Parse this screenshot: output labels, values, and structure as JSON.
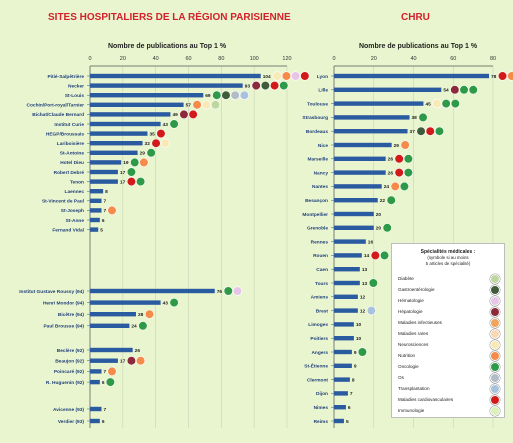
{
  "chart_data": [
    {
      "type": "bar",
      "title": "SITES HOSPITALIERS DE LA RÉGION PARISIENNE",
      "xlabel": "Nombre de publications au Top 1 %",
      "xlim": [
        0,
        120
      ],
      "ticks": [
        0,
        20,
        40,
        60,
        80,
        100,
        120
      ],
      "grid": true,
      "bar_color": "#2a5aa0",
      "rows": [
        {
          "label": "Pitié-Salpêtrière",
          "value": 104,
          "specialties": [
            "neurosciences",
            "nutrition",
            "hematologie",
            "cardiovasculaires"
          ]
        },
        {
          "label": "Necker",
          "value": 93,
          "specialties": [
            "hepatologie",
            "gastroenterologie",
            "cardiovasculaires",
            "oncologie"
          ]
        },
        {
          "label": "St-Louis",
          "value": 69,
          "specialties": [
            "oncologie",
            "gastroenterologie",
            "os",
            "transplantation"
          ]
        },
        {
          "label": "Cochin/Port-royal/Tarnier",
          "value": 57,
          "specialties": [
            "nutrition",
            "neurosciences",
            "diabete"
          ]
        },
        {
          "label": "Bichat/Claude Bernard",
          "value": 49,
          "specialties": [
            "hepatologie",
            "cardiovasculaires"
          ]
        },
        {
          "label": "Institut Curie",
          "value": 43,
          "specialties": [
            "oncologie"
          ]
        },
        {
          "label": "HEGP/Broussais",
          "value": 35,
          "specialties": [
            "cardiovasculaires"
          ]
        },
        {
          "label": "Lariboisière",
          "value": 32,
          "specialties": [
            "cardiovasculaires",
            "neurosciences"
          ]
        },
        {
          "label": "St-Antoine",
          "value": 29,
          "specialties": [
            "oncologie"
          ]
        },
        {
          "label": "Hotel Dieu",
          "value": 19,
          "specialties": [
            "oncologie",
            "nutrition"
          ]
        },
        {
          "label": "Robert Debré",
          "value": 17,
          "specialties": [
            "oncologie"
          ]
        },
        {
          "label": "Tenon",
          "value": 17,
          "specialties": [
            "cardiovasculaires",
            "oncologie"
          ]
        },
        {
          "label": "Laennec",
          "value": 8,
          "specialties": []
        },
        {
          "label": "St-Vincent de Paul",
          "value": 7,
          "specialties": []
        },
        {
          "label": "St-Joseph",
          "value": 7,
          "specialties": [
            "nutrition"
          ]
        },
        {
          "label": "St-Anne",
          "value": 6,
          "specialties": []
        },
        {
          "label": "Fernand Vidal",
          "value": 5,
          "specialties": []
        },
        {
          "label": "Institut Gustave Roussy (94)",
          "value": 76,
          "specialties": [
            "oncologie",
            "hematologie"
          ]
        },
        {
          "label": "Henri Mondor (94)",
          "value": 43,
          "specialties": [
            "oncologie"
          ]
        },
        {
          "label": "Bicêtre (94)",
          "value": 28,
          "specialties": [
            "nutrition"
          ]
        },
        {
          "label": "Paul Brousse (94)",
          "value": 24,
          "specialties": [
            "oncologie"
          ]
        },
        {
          "label": "Beclère (92)",
          "value": 26,
          "specialties": []
        },
        {
          "label": "Beaujon (92)",
          "value": 17,
          "specialties": [
            "hepatologie",
            "nutrition"
          ]
        },
        {
          "label": "Poincaré (92)",
          "value": 7,
          "specialties": [
            "nutrition"
          ]
        },
        {
          "label": "R. Huguenin (92)",
          "value": 6,
          "specialties": [
            "oncologie"
          ]
        },
        {
          "label": "Avicenne (93)",
          "value": 7,
          "specialties": []
        },
        {
          "label": "Verdier (93)",
          "value": 6,
          "specialties": []
        }
      ]
    },
    {
      "type": "bar",
      "title": "CHRU",
      "xlabel": "Nombre de publications au Top 1 %",
      "xlim": [
        0,
        80
      ],
      "ticks": [
        0,
        20,
        40,
        60,
        80
      ],
      "grid": true,
      "bar_color": "#2a5aa0",
      "rows": [
        {
          "label": "Lyon",
          "value": 78,
          "specialties": [
            "cardiovasculaires",
            "nutrition",
            "neurosciences",
            "immunologie"
          ]
        },
        {
          "label": "Lille",
          "value": 54,
          "specialties": [
            "hepatologie",
            "oncologie",
            "oncologie"
          ]
        },
        {
          "label": "Toulouse",
          "value": 45,
          "specialties": [
            "neurosciences",
            "oncologie",
            "oncologie"
          ]
        },
        {
          "label": "Strasbourg",
          "value": 38,
          "specialties": [
            "oncologie"
          ]
        },
        {
          "label": "Bordeaux",
          "value": 37,
          "specialties": [
            "gastroenterologie",
            "cardiovasculaires",
            "oncologie"
          ]
        },
        {
          "label": "Nice",
          "value": 29,
          "specialties": [
            "nutrition"
          ]
        },
        {
          "label": "Marseille",
          "value": 26,
          "specialties": [
            "cardiovasculaires",
            "oncologie"
          ]
        },
        {
          "label": "Nancy",
          "value": 26,
          "specialties": [
            "cardiovasculaires",
            "oncologie"
          ]
        },
        {
          "label": "Nantes",
          "value": 24,
          "specialties": [
            "nutrition",
            "oncologie"
          ]
        },
        {
          "label": "Besançon",
          "value": 22,
          "specialties": [
            "oncologie"
          ]
        },
        {
          "label": "Montpellier",
          "value": 20,
          "specialties": []
        },
        {
          "label": "Grenoble",
          "value": 20,
          "specialties": [
            "oncologie"
          ]
        },
        {
          "label": "Rennes",
          "value": 16,
          "specialties": []
        },
        {
          "label": "Rouen",
          "value": 14,
          "specialties": [
            "cardiovasculaires",
            "oncologie"
          ]
        },
        {
          "label": "Caen",
          "value": 13,
          "specialties": []
        },
        {
          "label": "Tours",
          "value": 13,
          "specialties": [
            "oncologie"
          ]
        },
        {
          "label": "Amiens",
          "value": 12,
          "specialties": []
        },
        {
          "label": "Brest",
          "value": 12,
          "specialties": [
            "transplantation"
          ]
        },
        {
          "label": "Limoges",
          "value": 10,
          "specialties": []
        },
        {
          "label": "Poitiers",
          "value": 10,
          "specialties": []
        },
        {
          "label": "Angers",
          "value": 9,
          "specialties": [
            "oncologie"
          ]
        },
        {
          "label": "St-Étienne",
          "value": 9,
          "specialties": []
        },
        {
          "label": "Clermont",
          "value": 8,
          "specialties": []
        },
        {
          "label": "Dijon",
          "value": 7,
          "specialties": []
        },
        {
          "label": "Nimes",
          "value": 6,
          "specialties": []
        },
        {
          "label": "Reims",
          "value": 5,
          "specialties": []
        }
      ]
    }
  ],
  "legend": {
    "title": "Spécialités médicales :",
    "subtitle_1": "(symbole si au moins",
    "subtitle_2": "5 articles de spécialité)",
    "items": [
      {
        "key": "diabete",
        "label": "Diabète",
        "color": "#bcd7a0"
      },
      {
        "key": "gastroenterologie",
        "label": "Gastroentérologie",
        "color": "#3f5b3a"
      },
      {
        "key": "hematologie",
        "label": "Hématologie",
        "color": "#e6c5e6"
      },
      {
        "key": "hepatologie",
        "label": "Hépatologie",
        "color": "#8c2a3c"
      },
      {
        "key": "maladies_infectieuses",
        "label": "Maladies infectieuses",
        "color": "#f2a35c"
      },
      {
        "key": "maladies_rares",
        "label": "Maladies rares",
        "color": "#fbd7b3"
      },
      {
        "key": "neurosciences",
        "label": "Neurosciences",
        "color": "#f8e9b5"
      },
      {
        "key": "nutrition",
        "label": "Nutrition",
        "color": "#f48b4a"
      },
      {
        "key": "oncologie",
        "label": "Oncologie",
        "color": "#2e9a48"
      },
      {
        "key": "os",
        "label": "Os",
        "color": "#b2bcc7"
      },
      {
        "key": "transplantation",
        "label": "Transplantation",
        "color": "#a8c2de"
      },
      {
        "key": "cardiovasculaires",
        "label": "Maladies cardiovasculaires",
        "color": "#d21a1a"
      },
      {
        "key": "immunologie",
        "label": "Immunologie",
        "color": "#d9f2b9"
      }
    ]
  }
}
